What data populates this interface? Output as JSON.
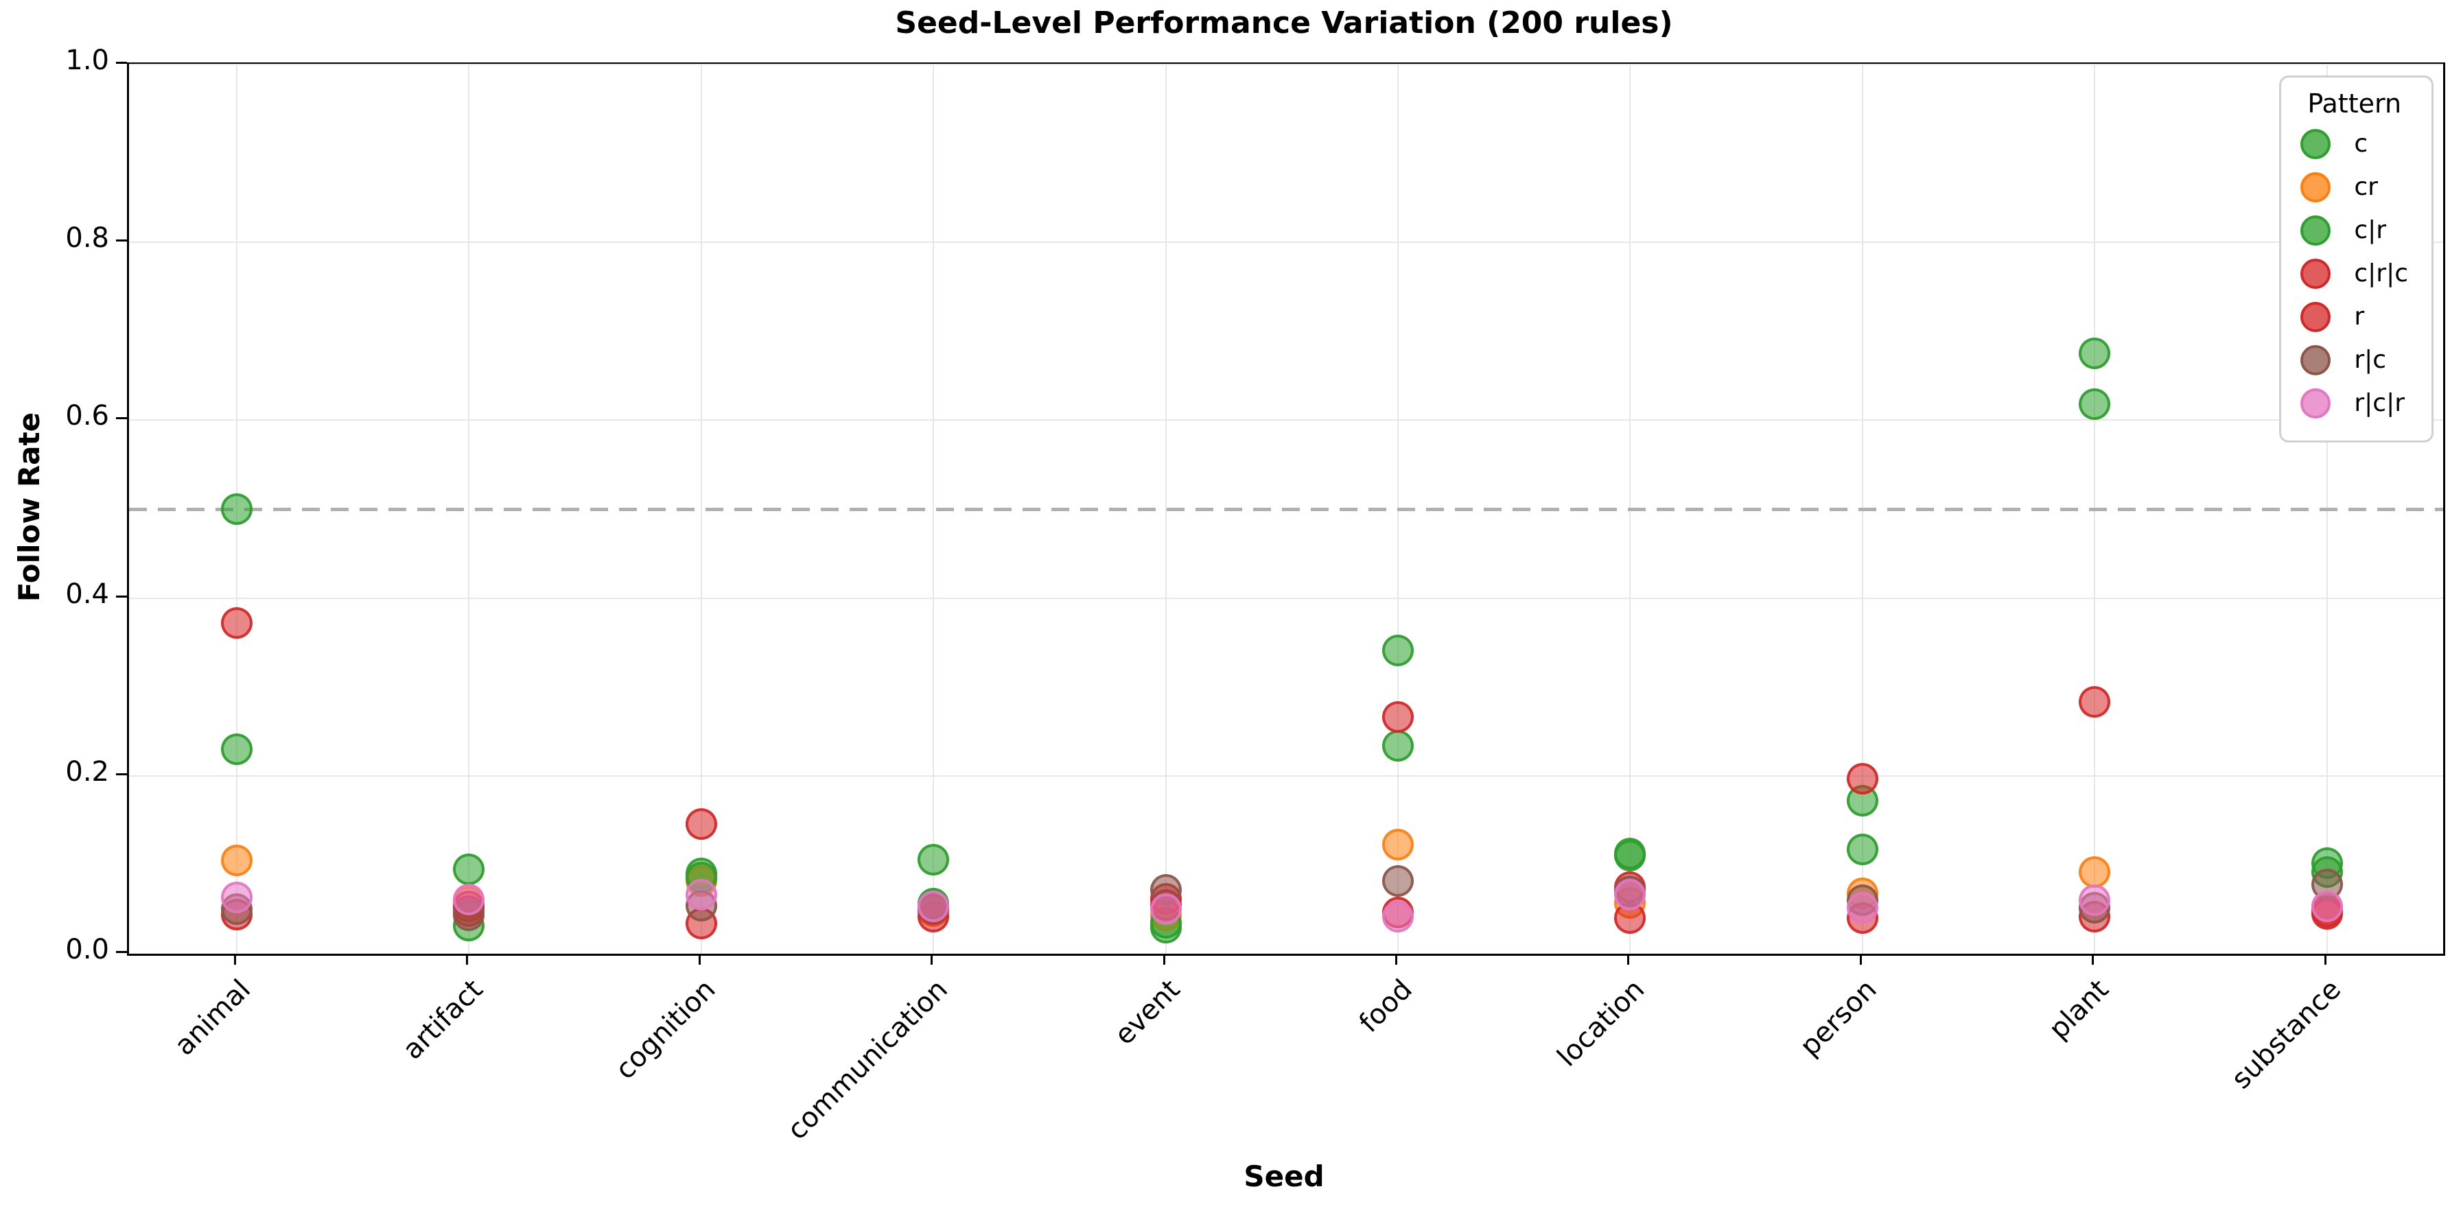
{
  "chart_data": {
    "type": "scatter",
    "title": "Seed-Level Performance Variation (200 rules)",
    "xlabel": "Seed",
    "ylabel": "Follow Rate",
    "ylim": [
      0.0,
      1.0
    ],
    "yticks": [
      "0.0",
      "0.2",
      "0.4",
      "0.6",
      "0.8",
      "1.0"
    ],
    "grid": true,
    "reference_line_y": 0.5,
    "legend_title": "Pattern",
    "legend_position": "upper right",
    "marker_diameter_px": 46,
    "colors": {
      "green": "#2ca02c",
      "orange": "#ff7f0e",
      "red": "#d62728",
      "brown": "#8c564b",
      "pink": "#e377c2",
      "refline_gray": "#b0b0b0"
    },
    "categories": [
      "animal",
      "artifact",
      "cognition",
      "communication",
      "event",
      "food",
      "location",
      "person",
      "plant",
      "substance"
    ],
    "series": [
      {
        "name": "c",
        "color": "#2ca02c",
        "values": [
          0.5,
          0.095,
          0.09,
          0.106,
          0.029,
          0.341,
          0.113,
          0.172,
          0.675,
          0.102
        ]
      },
      {
        "name": "cr",
        "color": "#ff7f0e",
        "values": [
          0.105,
          0.058,
          0.082,
          0.048,
          0.043,
          0.123,
          0.057,
          0.068,
          0.092,
          0.052
        ]
      },
      {
        "name": "c|r",
        "color": "#2ca02c",
        "values": [
          0.23,
          0.032,
          0.086,
          0.056,
          0.035,
          0.234,
          0.11,
          0.117,
          0.618,
          0.092
        ]
      },
      {
        "name": "c|r|c",
        "color": "#d62728",
        "values": [
          0.044,
          0.048,
          0.034,
          0.042,
          0.055,
          0.046,
          0.04,
          0.04,
          0.042,
          0.045
        ]
      },
      {
        "name": "r",
        "color": "#d62728",
        "values": [
          0.372,
          0.053,
          0.146,
          0.05,
          0.062,
          0.266,
          0.075,
          0.197,
          0.283,
          0.048
        ]
      },
      {
        "name": "r|c",
        "color": "#8c564b",
        "values": [
          0.05,
          0.043,
          0.054,
          0.052,
          0.072,
          0.082,
          0.07,
          0.06,
          0.052,
          0.078
        ]
      },
      {
        "name": "r|c|r",
        "color": "#e377c2",
        "values": [
          0.063,
          0.061,
          0.066,
          0.053,
          0.05,
          0.042,
          0.066,
          0.052,
          0.06,
          0.053
        ]
      }
    ]
  }
}
